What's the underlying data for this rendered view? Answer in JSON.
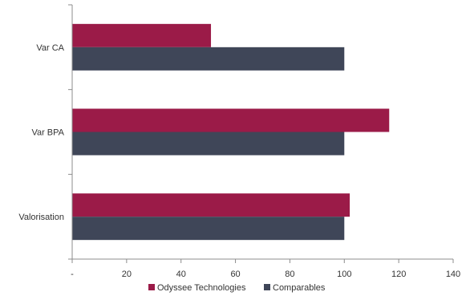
{
  "chart_data": {
    "type": "bar",
    "orientation": "horizontal",
    "categories": [
      "Var CA",
      "Var BPA",
      "Valorisation"
    ],
    "series": [
      {
        "name": "Odyssee Technologies",
        "values": [
          51,
          116.5,
          102
        ],
        "color": "#9b1b48"
      },
      {
        "name": "Comparables",
        "values": [
          100,
          100,
          100
        ],
        "color": "#3f4658"
      }
    ],
    "xlim": [
      0,
      140
    ],
    "x_ticks": [
      0,
      20,
      40,
      60,
      80,
      100,
      120,
      140
    ],
    "x_tick_labels": [
      "-",
      "20",
      "40",
      "60",
      "80",
      "100",
      "120",
      "140"
    ],
    "grid": false,
    "legend_position": "bottom"
  }
}
